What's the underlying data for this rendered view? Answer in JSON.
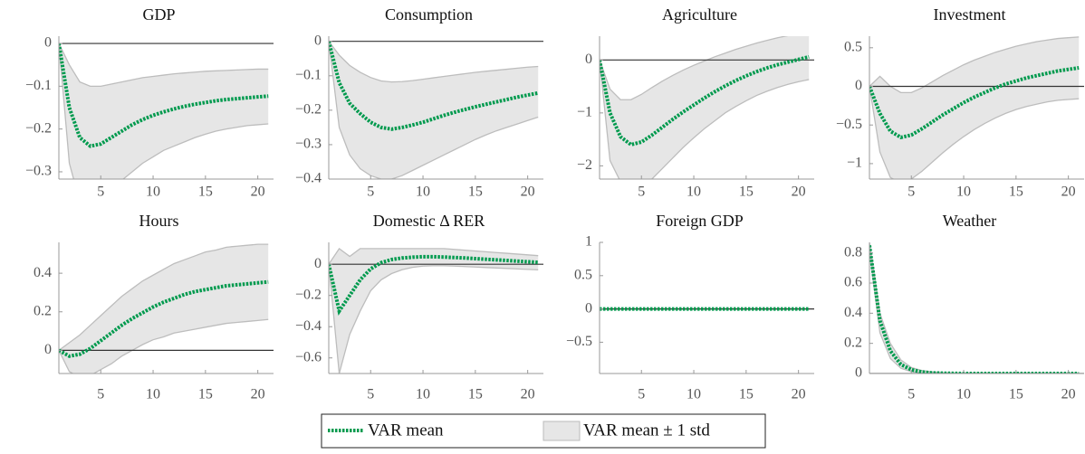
{
  "chart_data": [
    {
      "type": "line",
      "title": "GDP",
      "x": [
        1,
        2,
        3,
        4,
        5,
        6,
        7,
        8,
        9,
        10,
        11,
        12,
        13,
        14,
        15,
        16,
        17,
        18,
        19,
        20,
        21
      ],
      "xlim": [
        1,
        21.5
      ],
      "xticks": [
        5,
        10,
        15,
        20
      ],
      "ylim": [
        -0.317,
        0.017
      ],
      "yticks": [
        0,
        {
          "value": -0.1,
          "label": "−0.1"
        },
        {
          "value": -0.2,
          "label": "−0.2"
        },
        {
          "value": -0.3,
          "label": "−0.3"
        }
      ],
      "series": [
        {
          "name": "VAR mean",
          "color": "#009a4e",
          "values": [
            0,
            -0.15,
            -0.22,
            -0.24,
            -0.235,
            -0.22,
            -0.205,
            -0.19,
            -0.178,
            -0.168,
            -0.16,
            -0.153,
            -0.147,
            -0.142,
            -0.138,
            -0.134,
            -0.131,
            -0.129,
            -0.127,
            -0.125,
            -0.123
          ]
        }
      ],
      "band": {
        "name": "VAR mean ± 1 std",
        "color": "#e6e6e6",
        "upper": [
          0,
          -0.05,
          -0.09,
          -0.1,
          -0.1,
          -0.095,
          -0.09,
          -0.085,
          -0.08,
          -0.077,
          -0.074,
          -0.071,
          -0.069,
          -0.067,
          -0.065,
          -0.064,
          -0.063,
          -0.062,
          -0.061,
          -0.06,
          -0.06
        ],
        "lower": [
          0,
          -0.28,
          -0.37,
          -0.38,
          -0.37,
          -0.35,
          -0.32,
          -0.3,
          -0.28,
          -0.265,
          -0.25,
          -0.24,
          -0.23,
          -0.22,
          -0.212,
          -0.205,
          -0.2,
          -0.196,
          -0.192,
          -0.19,
          -0.188
        ]
      }
    },
    {
      "type": "line",
      "title": "Consumption",
      "x": [
        1,
        2,
        3,
        4,
        5,
        6,
        7,
        8,
        9,
        10,
        11,
        12,
        13,
        14,
        15,
        16,
        17,
        18,
        19,
        20,
        21
      ],
      "xlim": [
        1,
        21.5
      ],
      "xticks": [
        5,
        10,
        15,
        20
      ],
      "ylim": [
        -0.4,
        0.015
      ],
      "yticks": [
        0,
        {
          "value": -0.1,
          "label": "−0.1"
        },
        {
          "value": -0.2,
          "label": "−0.2"
        },
        {
          "value": -0.3,
          "label": "−0.3"
        },
        {
          "value": -0.4,
          "label": "−0.4"
        }
      ],
      "series": [
        {
          "color": "#009a4e",
          "values": [
            0,
            -0.12,
            -0.18,
            -0.21,
            -0.235,
            -0.25,
            -0.255,
            -0.25,
            -0.243,
            -0.235,
            -0.225,
            -0.215,
            -0.206,
            -0.198,
            -0.19,
            -0.183,
            -0.176,
            -0.169,
            -0.162,
            -0.156,
            -0.15
          ]
        }
      ],
      "band": {
        "color": "#e6e6e6",
        "upper": [
          0,
          -0.04,
          -0.07,
          -0.09,
          -0.105,
          -0.115,
          -0.118,
          -0.117,
          -0.114,
          -0.11,
          -0.106,
          -0.102,
          -0.098,
          -0.094,
          -0.09,
          -0.087,
          -0.084,
          -0.081,
          -0.078,
          -0.075,
          -0.073
        ],
        "lower": [
          0,
          -0.25,
          -0.33,
          -0.37,
          -0.39,
          -0.4,
          -0.4,
          -0.39,
          -0.375,
          -0.36,
          -0.345,
          -0.33,
          -0.315,
          -0.3,
          -0.285,
          -0.272,
          -0.26,
          -0.25,
          -0.24,
          -0.23,
          -0.22
        ]
      }
    },
    {
      "type": "line",
      "title": "Agriculture",
      "x": [
        1,
        2,
        3,
        4,
        5,
        6,
        7,
        8,
        9,
        10,
        11,
        12,
        13,
        14,
        15,
        16,
        17,
        18,
        19,
        20,
        21
      ],
      "xlim": [
        1,
        21.5
      ],
      "xticks": [
        5,
        10,
        15,
        20
      ],
      "ylim": [
        -2.25,
        0.45
      ],
      "yticks": [
        0,
        {
          "value": -1,
          "label": "−1"
        },
        {
          "value": -2,
          "label": "−2"
        }
      ],
      "series": [
        {
          "color": "#009a4e",
          "values": [
            0,
            -1.0,
            -1.45,
            -1.6,
            -1.55,
            -1.42,
            -1.27,
            -1.12,
            -0.98,
            -0.85,
            -0.72,
            -0.6,
            -0.49,
            -0.39,
            -0.3,
            -0.22,
            -0.15,
            -0.09,
            -0.04,
            0.01,
            0.06
          ]
        }
      ],
      "band": {
        "color": "#e6e6e6",
        "upper": [
          0,
          -0.55,
          -0.75,
          -0.75,
          -0.65,
          -0.52,
          -0.4,
          -0.29,
          -0.19,
          -0.1,
          -0.02,
          0.06,
          0.13,
          0.2,
          0.26,
          0.32,
          0.37,
          0.42,
          0.46,
          0.5,
          0.54
        ],
        "lower": [
          0,
          -1.9,
          -2.3,
          -2.45,
          -2.4,
          -2.25,
          -2.05,
          -1.85,
          -1.65,
          -1.47,
          -1.3,
          -1.15,
          -1.0,
          -0.88,
          -0.77,
          -0.67,
          -0.59,
          -0.52,
          -0.46,
          -0.41,
          -0.37
        ]
      }
    },
    {
      "type": "line",
      "title": "Investment",
      "x": [
        1,
        2,
        3,
        4,
        5,
        6,
        7,
        8,
        9,
        10,
        11,
        12,
        13,
        14,
        15,
        16,
        17,
        18,
        19,
        20,
        21
      ],
      "xlim": [
        1,
        21.5
      ],
      "xticks": [
        5,
        10,
        15,
        20
      ],
      "ylim": [
        -1.2,
        0.65
      ],
      "yticks": [
        0.5,
        0,
        {
          "value": -0.5,
          "label": "−0.5"
        },
        {
          "value": -1,
          "label": "−1"
        }
      ],
      "series": [
        {
          "color": "#009a4e",
          "values": [
            0,
            -0.35,
            -0.58,
            -0.66,
            -0.63,
            -0.55,
            -0.46,
            -0.37,
            -0.29,
            -0.21,
            -0.14,
            -0.08,
            -0.02,
            0.03,
            0.07,
            0.11,
            0.14,
            0.17,
            0.2,
            0.22,
            0.24
          ]
        }
      ],
      "band": {
        "color": "#e6e6e6",
        "upper": [
          0,
          0.13,
          0.0,
          -0.08,
          -0.08,
          -0.02,
          0.06,
          0.14,
          0.21,
          0.28,
          0.34,
          0.39,
          0.44,
          0.48,
          0.52,
          0.55,
          0.58,
          0.6,
          0.62,
          0.63,
          0.64
        ],
        "lower": [
          0,
          -0.85,
          -1.18,
          -1.25,
          -1.2,
          -1.1,
          -0.98,
          -0.86,
          -0.75,
          -0.65,
          -0.56,
          -0.48,
          -0.41,
          -0.35,
          -0.3,
          -0.26,
          -0.23,
          -0.2,
          -0.18,
          -0.17,
          -0.16
        ]
      }
    },
    {
      "type": "line",
      "title": "Hours",
      "x": [
        1,
        2,
        3,
        4,
        5,
        6,
        7,
        8,
        9,
        10,
        11,
        12,
        13,
        14,
        15,
        16,
        17,
        18,
        19,
        20,
        21
      ],
      "xlim": [
        1,
        21.5
      ],
      "xticks": [
        5,
        10,
        15,
        20
      ],
      "ylim": [
        -0.12,
        0.56
      ],
      "yticks": [
        0,
        0.2,
        0.4
      ],
      "series": [
        {
          "color": "#009a4e",
          "values": [
            0,
            -0.03,
            -0.02,
            0.01,
            0.05,
            0.09,
            0.13,
            0.165,
            0.195,
            0.225,
            0.25,
            0.27,
            0.29,
            0.305,
            0.315,
            0.325,
            0.335,
            0.34,
            0.345,
            0.35,
            0.355
          ]
        }
      ],
      "band": {
        "color": "#e6e6e6",
        "upper": [
          0,
          0.04,
          0.08,
          0.13,
          0.18,
          0.23,
          0.28,
          0.32,
          0.36,
          0.39,
          0.42,
          0.45,
          0.47,
          0.49,
          0.51,
          0.52,
          0.535,
          0.54,
          0.545,
          0.55,
          0.55
        ],
        "lower": [
          0,
          -0.11,
          -0.14,
          -0.13,
          -0.1,
          -0.07,
          -0.03,
          0.0,
          0.03,
          0.055,
          0.07,
          0.09,
          0.1,
          0.11,
          0.12,
          0.13,
          0.14,
          0.145,
          0.15,
          0.155,
          0.16
        ]
      }
    },
    {
      "type": "line",
      "title": "Domestic Δ RER",
      "x": [
        1,
        2,
        3,
        4,
        5,
        6,
        7,
        8,
        9,
        10,
        11,
        12,
        13,
        14,
        15,
        16,
        17,
        18,
        19,
        20,
        21
      ],
      "xlim": [
        1,
        21.5
      ],
      "xticks": [
        5,
        10,
        15,
        20
      ],
      "ylim": [
        -0.7,
        0.14
      ],
      "yticks": [
        0,
        {
          "value": -0.2,
          "label": "−0.2"
        },
        {
          "value": -0.4,
          "label": "−0.4"
        },
        {
          "value": -0.6,
          "label": "−0.6"
        }
      ],
      "series": [
        {
          "color": "#009a4e",
          "values": [
            0,
            -0.3,
            -0.2,
            -0.1,
            -0.03,
            0.01,
            0.03,
            0.04,
            0.045,
            0.048,
            0.048,
            0.046,
            0.043,
            0.04,
            0.036,
            0.032,
            0.028,
            0.024,
            0.02,
            0.016,
            0.012
          ]
        }
      ],
      "band": {
        "color": "#e6e6e6",
        "upper": [
          0,
          0.1,
          0.05,
          0.1,
          0.1,
          0.1,
          0.1,
          0.1,
          0.1,
          0.1,
          0.1,
          0.1,
          0.095,
          0.09,
          0.085,
          0.08,
          0.075,
          0.07,
          0.065,
          0.06,
          0.055
        ],
        "lower": [
          0,
          -0.7,
          -0.45,
          -0.3,
          -0.17,
          -0.1,
          -0.06,
          -0.035,
          -0.02,
          -0.012,
          -0.01,
          -0.01,
          -0.012,
          -0.015,
          -0.018,
          -0.021,
          -0.024,
          -0.027,
          -0.03,
          -0.033,
          -0.036
        ]
      }
    },
    {
      "type": "line",
      "title": "Foreign GDP",
      "x": [
        1,
        2,
        3,
        4,
        5,
        6,
        7,
        8,
        9,
        10,
        11,
        12,
        13,
        14,
        15,
        16,
        17,
        18,
        19,
        20,
        21
      ],
      "xlim": [
        1,
        21.5
      ],
      "xticks": [
        5,
        10,
        15,
        20
      ],
      "ylim": [
        -0.97,
        1
      ],
      "yticks": [
        1,
        0.5,
        0,
        {
          "value": -0.5,
          "label": "−0.5"
        }
      ],
      "series": [
        {
          "color": "#009a4e",
          "values": [
            0,
            0,
            0,
            0,
            0,
            0,
            0,
            0,
            0,
            0,
            0,
            0,
            0,
            0,
            0,
            0,
            0,
            0,
            0,
            0,
            0
          ]
        }
      ],
      "band": {
        "color": "#e6e6e6",
        "upper": [
          0,
          0,
          0,
          0,
          0,
          0,
          0,
          0,
          0,
          0,
          0,
          0,
          0,
          0,
          0,
          0,
          0,
          0,
          0,
          0,
          0
        ],
        "lower": [
          0,
          0,
          0,
          0,
          0,
          0,
          0,
          0,
          0,
          0,
          0,
          0,
          0,
          0,
          0,
          0,
          0,
          0,
          0,
          0,
          0
        ]
      }
    },
    {
      "type": "line",
      "title": "Weather",
      "x": [
        1,
        2,
        3,
        4,
        5,
        6,
        7,
        8,
        9,
        10,
        11,
        12,
        13,
        14,
        15,
        16,
        17,
        18,
        19,
        20,
        21
      ],
      "xlim": [
        1,
        21.5
      ],
      "xticks": [
        5,
        10,
        15,
        20
      ],
      "ylim": [
        0,
        0.87
      ],
      "yticks": [
        0,
        0.2,
        0.4,
        0.6,
        0.8
      ],
      "series": [
        {
          "color": "#009a4e",
          "values": [
            0.85,
            0.35,
            0.15,
            0.06,
            0.025,
            0.01,
            0.004,
            0.002,
            0.001,
            0,
            0,
            0,
            0,
            0,
            0,
            0,
            0,
            0,
            0,
            0,
            0
          ]
        }
      ],
      "band": {
        "color": "#e6e6e6",
        "upper": [
          0.87,
          0.4,
          0.2,
          0.09,
          0.04,
          0.02,
          0.01,
          0.005,
          0.002,
          0.001,
          0,
          0,
          0,
          0,
          0,
          0,
          0,
          0,
          0,
          0,
          0
        ],
        "lower": [
          0.82,
          0.27,
          0.1,
          0.035,
          0.012,
          0.004,
          0.001,
          0,
          0,
          0,
          0,
          0,
          0,
          0,
          0,
          0,
          0,
          0,
          0,
          0,
          0
        ]
      }
    }
  ]
}
